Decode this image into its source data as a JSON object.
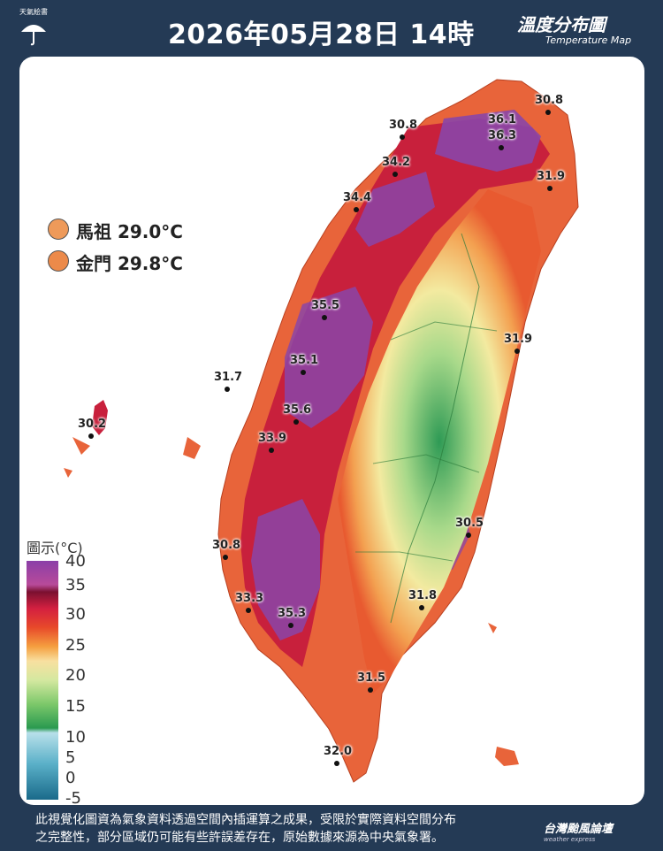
{
  "header": {
    "logo_text": "天氣絵書",
    "title": "2026年05月28日 14時",
    "subtitle": "溫度分布圖",
    "subtitle_en": "Temperature Map"
  },
  "islands": [
    {
      "label": "馬祖 29.0°C",
      "color": "#ee9a5a"
    },
    {
      "label": "金門 29.8°C",
      "color": "#ec8a4a"
    }
  ],
  "legend": {
    "title": "圖示(°C)",
    "ticks": [
      "40",
      "35",
      "30",
      "25",
      "20",
      "15",
      "10",
      "5",
      "0",
      "-5"
    ]
  },
  "stations": [
    {
      "value": "30.8"
    },
    {
      "value": "36.1"
    },
    {
      "value": "30.8"
    },
    {
      "value": "36.3"
    },
    {
      "value": "34.2"
    },
    {
      "value": "31.9"
    },
    {
      "value": "34.4"
    },
    {
      "value": "35.5"
    },
    {
      "value": "31.9"
    },
    {
      "value": "35.1"
    },
    {
      "value": "31.7"
    },
    {
      "value": "35.6"
    },
    {
      "value": "30.2"
    },
    {
      "value": "33.9"
    },
    {
      "value": "30.5"
    },
    {
      "value": "30.8"
    },
    {
      "value": "33.3"
    },
    {
      "value": "35.3"
    },
    {
      "value": "31.8"
    },
    {
      "value": "31.5"
    },
    {
      "value": "32.0"
    }
  ],
  "footer": {
    "line1": "此視覺化圖資為氣象資料透過空間內插運算之成果，受限於實際資料空間分布",
    "line2": "之完整性，部分區域仍可能有些許誤差存在，原始數據來源為中央氣象署。"
  },
  "brand": {
    "name": "台灣颱風論壇",
    "name_en": "weather express"
  }
}
